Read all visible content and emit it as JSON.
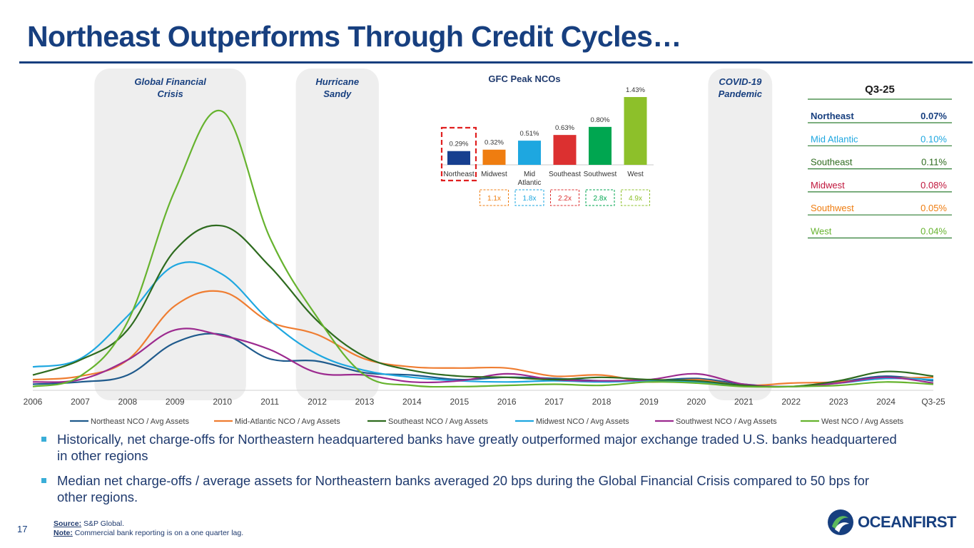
{
  "slide": {
    "title": "Northeast Outperforms Through Credit Cycles…",
    "page_number": "17",
    "source_label": "Source:",
    "source_text": "S&P Global.",
    "note_label": "Note:",
    "note_text": "Commercial bank reporting is on a one quarter lag.",
    "logo_text": "OCEANFIRST",
    "colors": {
      "brand": "#173f7f",
      "bullet": "#3aaed8",
      "band": "#eeeeee"
    }
  },
  "bullets": [
    "Historically, net charge-offs for Northeastern headquartered banks have greatly outperformed major exchange traded U.S. banks headquartered in other regions",
    "Median net charge-offs / average assets for Northeastern banks averaged 20 bps during the Global Financial Crisis compared to 50 bps for other regions."
  ],
  "chart_data": [
    {
      "type": "line",
      "title": "",
      "xlabel": "",
      "ylabel": "",
      "categories": [
        "2006",
        "2007",
        "2008",
        "2009",
        "2010",
        "2011",
        "2012",
        "2013",
        "2014",
        "2015",
        "2016",
        "2017",
        "2018",
        "2019",
        "2020",
        "2021",
        "2022",
        "2023",
        "2024",
        "Q3-25"
      ],
      "x": [
        0,
        1,
        2,
        3,
        4,
        5,
        6,
        7,
        8,
        9,
        10,
        11,
        12,
        13,
        14,
        15,
        16,
        17,
        18,
        19
      ],
      "ylim": [
        0,
        2.5
      ],
      "grid": false,
      "legend": "bottom",
      "events": [
        {
          "label_line1": "Global Financial",
          "label_line2": "Crisis",
          "x_start": 1.3,
          "x_end": 4.5
        },
        {
          "label_line1": "Hurricane",
          "label_line2": "Sandy",
          "x_start": 5.55,
          "x_end": 7.3
        },
        {
          "label_line1": "COVID-19",
          "label_line2": "Pandemic",
          "x_start": 14.25,
          "x_end": 15.6
        }
      ],
      "series": [
        {
          "name": "Northeast NCO / Avg Assets",
          "color": "#1f5a8c",
          "values": [
            0.04,
            0.06,
            0.12,
            0.4,
            0.47,
            0.26,
            0.24,
            0.14,
            0.12,
            0.08,
            0.1,
            0.09,
            0.07,
            0.07,
            0.09,
            0.04,
            0.02,
            0.06,
            0.11,
            0.07
          ]
        },
        {
          "name": "Mid-Atlantic NCO / Avg Assets",
          "color": "#ef7d31",
          "values": [
            0.08,
            0.11,
            0.25,
            0.72,
            0.84,
            0.58,
            0.47,
            0.26,
            0.19,
            0.18,
            0.18,
            0.11,
            0.12,
            0.06,
            0.08,
            0.03,
            0.05,
            0.06,
            0.09,
            0.1
          ]
        },
        {
          "name": "Southeast NCO / Avg Assets",
          "color": "#2e6b1f",
          "values": [
            0.12,
            0.25,
            0.51,
            1.2,
            1.41,
            1.06,
            0.59,
            0.28,
            0.16,
            0.11,
            0.1,
            0.08,
            0.1,
            0.08,
            0.07,
            0.03,
            0.02,
            0.07,
            0.15,
            0.11
          ]
        },
        {
          "name": "Midwest NCO / Avg Assets",
          "color": "#1ea7e0",
          "values": [
            0.19,
            0.26,
            0.63,
            1.07,
            0.99,
            0.59,
            0.3,
            0.16,
            0.1,
            0.07,
            0.06,
            0.07,
            0.06,
            0.07,
            0.06,
            0.03,
            0.02,
            0.05,
            0.09,
            0.08
          ]
        },
        {
          "name": "Southwest NCO / Avg Assets",
          "color": "#9c2a8f",
          "values": [
            0.06,
            0.08,
            0.25,
            0.51,
            0.46,
            0.34,
            0.14,
            0.12,
            0.06,
            0.07,
            0.13,
            0.08,
            0.07,
            0.08,
            0.13,
            0.04,
            0.02,
            0.05,
            0.1,
            0.05
          ]
        },
        {
          "name": "West NCO / Avg Assets",
          "color": "#66b32e",
          "values": [
            0.02,
            0.11,
            0.58,
            1.72,
            2.4,
            1.31,
            0.62,
            0.12,
            0.03,
            0.02,
            0.03,
            0.04,
            0.03,
            0.06,
            0.05,
            0.02,
            0.02,
            0.03,
            0.06,
            0.04
          ]
        }
      ]
    },
    {
      "type": "bar",
      "title": "GFC Peak NCOs",
      "categories": [
        "Northeast",
        "Midwest",
        "Mid Atlantic",
        "Southeast",
        "Southwest",
        "West"
      ],
      "values": [
        0.29,
        0.32,
        0.51,
        0.63,
        0.8,
        1.43
      ],
      "value_labels": [
        "0.29%",
        "0.32%",
        "0.51%",
        "0.63%",
        "0.80%",
        "1.43%"
      ],
      "multiples": [
        "",
        "1.1x",
        "1.8x",
        "2.2x",
        "2.8x",
        "4.9x"
      ],
      "colors": [
        "#173f8f",
        "#ef7d10",
        "#1ea7e0",
        "#dc3030",
        "#00a650",
        "#8dc02a"
      ],
      "highlight": "Northeast",
      "ylim": [
        0,
        1.43
      ]
    },
    {
      "type": "table",
      "title": "Q3-25",
      "rows": [
        {
          "region": "Northeast",
          "value": "0.07%",
          "color": "#173f7f",
          "bold": true
        },
        {
          "region": "Mid Atlantic",
          "value": "0.10%",
          "color": "#1ea7e0",
          "bold": false
        },
        {
          "region": "Southeast",
          "value": "0.11%",
          "color": "#2e6b1f",
          "bold": false
        },
        {
          "region": "Midwest",
          "value": "0.08%",
          "color": "#c0163c",
          "bold": false
        },
        {
          "region": "Southwest",
          "value": "0.05%",
          "color": "#ef7d10",
          "bold": false
        },
        {
          "region": "West",
          "value": "0.04%",
          "color": "#66b32e",
          "bold": false
        }
      ],
      "rule_color": "#2e7d32"
    }
  ]
}
